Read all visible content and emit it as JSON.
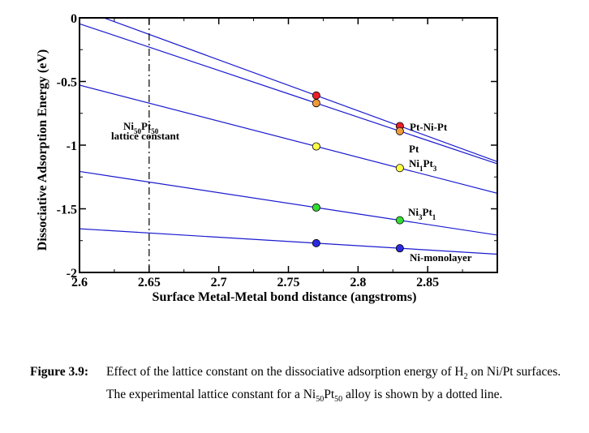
{
  "chart_data": {
    "type": "line",
    "xlabel": "Surface Metal-Metal bond distance (angstroms)",
    "ylabel": "Dissociative Adsorption Energy (eV)",
    "xlim": [
      2.6,
      2.9
    ],
    "ylim": [
      -2,
      0
    ],
    "x_ticks": [
      2.6,
      2.65,
      2.7,
      2.75,
      2.8,
      2.85
    ],
    "x_tick_labels": [
      "2.6",
      "2.65",
      "2.7",
      "2.75",
      "2.8",
      "2.85"
    ],
    "y_ticks": [
      0,
      -0.5,
      -1,
      -1.5,
      -2
    ],
    "y_tick_labels": [
      "0",
      "-0.5",
      "-1",
      "-1.5",
      "-2"
    ],
    "grid": false,
    "series": [
      {
        "name": "Pt-Ni-Pt",
        "color": "#e8202a",
        "x": [
          2.77,
          2.83
        ],
        "y": [
          -0.61,
          -0.85
        ]
      },
      {
        "name": "Pt",
        "color": "#f09a3a",
        "x": [
          2.77,
          2.83
        ],
        "y": [
          -0.67,
          -0.89
        ]
      },
      {
        "name": "Ni1Pt3",
        "color": "#ffff44",
        "x": [
          2.77,
          2.83
        ],
        "y": [
          -1.01,
          -1.18
        ]
      },
      {
        "name": "Ni3Pt1",
        "color": "#33dd33",
        "x": [
          2.77,
          2.83
        ],
        "y": [
          -1.49,
          -1.59
        ]
      },
      {
        "name": "Ni-monolayer",
        "color": "#2a2ae0",
        "x": [
          2.77,
          2.83
        ],
        "y": [
          -1.77,
          -1.81
        ]
      }
    ],
    "vertical_marker": {
      "x": 2.65,
      "label_main": "Ni",
      "label_sub1": "50",
      "label_mid": "Pt",
      "label_sub2": "50",
      "label_line2": "lattice constant"
    },
    "line_color": "#1a1ad0"
  },
  "labels": {
    "ptnipt": "Pt-Ni-Pt",
    "pt": "Pt",
    "ni1pt3_a": "Ni",
    "ni1pt3_s1": "1",
    "ni1pt3_b": "Pt",
    "ni1pt3_s2": "3",
    "ni3pt1_a": "Ni",
    "ni3pt1_s1": "3",
    "ni3pt1_b": "Pt",
    "ni3pt1_s2": "1",
    "nimono": "Ni-monolayer"
  },
  "caption": {
    "lead": "Figure 3.9:",
    "text1": "Effect of the lattice constant on the dissociative adsorption energy of H",
    "sub_h": "2",
    "text2": "on Ni/Pt surfaces. The experimental lattice constant for a Ni",
    "sub_ni": "50",
    "text3": "Pt",
    "sub_pt": "50",
    "text4": "alloy is shown by a dotted line."
  }
}
